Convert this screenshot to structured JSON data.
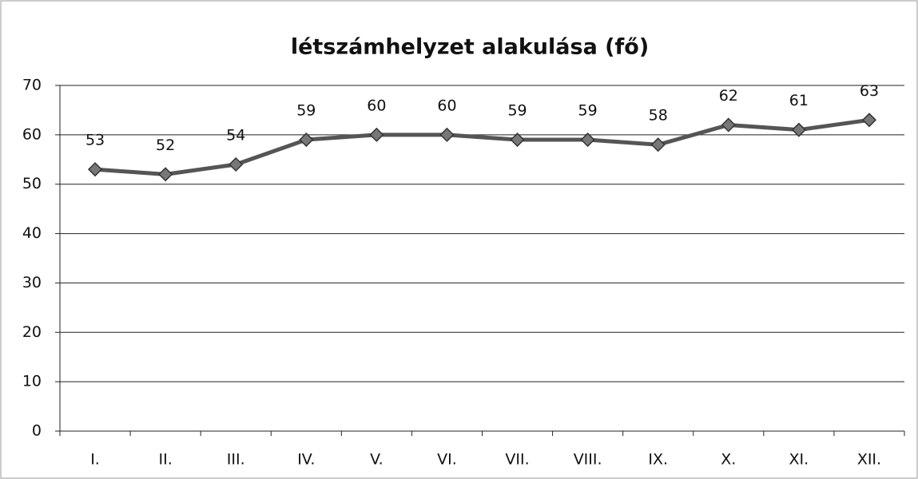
{
  "chart_data": {
    "type": "line",
    "title": "létszámhelyzet alakulása (fő)",
    "categories": [
      "I.",
      "II.",
      "III.",
      "IV.",
      "V.",
      "VI.",
      "VII.",
      "VIII.",
      "IX.",
      "X.",
      "XI.",
      "XII."
    ],
    "values": [
      53,
      52,
      54,
      59,
      60,
      60,
      59,
      59,
      58,
      62,
      61,
      63
    ],
    "color": "#555555",
    "ylim": [
      0,
      70
    ],
    "yticks": [
      0,
      10,
      20,
      30,
      40,
      50,
      60,
      70
    ],
    "grid": true
  }
}
